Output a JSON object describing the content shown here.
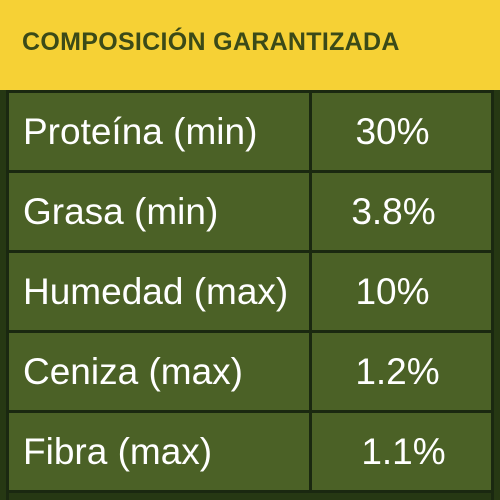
{
  "title": "COMPOSICIÓN GARANTIZADA",
  "rows": [
    {
      "label": "Proteína (min)",
      "value": "30%"
    },
    {
      "label": "Grasa (min)",
      "value": "3.8%"
    },
    {
      "label": "Humedad (max)",
      "value": "10%"
    },
    {
      "label": "Ceniza (max)",
      "value": "1.2%"
    },
    {
      "label": "Fibra (max)",
      "value": "1.1%"
    }
  ],
  "colors": {
    "title_background": "#f6d135",
    "title_text": "#3b4a18",
    "cell_background": "#4b6126",
    "border": "#1a2810",
    "cell_text": "#ffffff"
  }
}
